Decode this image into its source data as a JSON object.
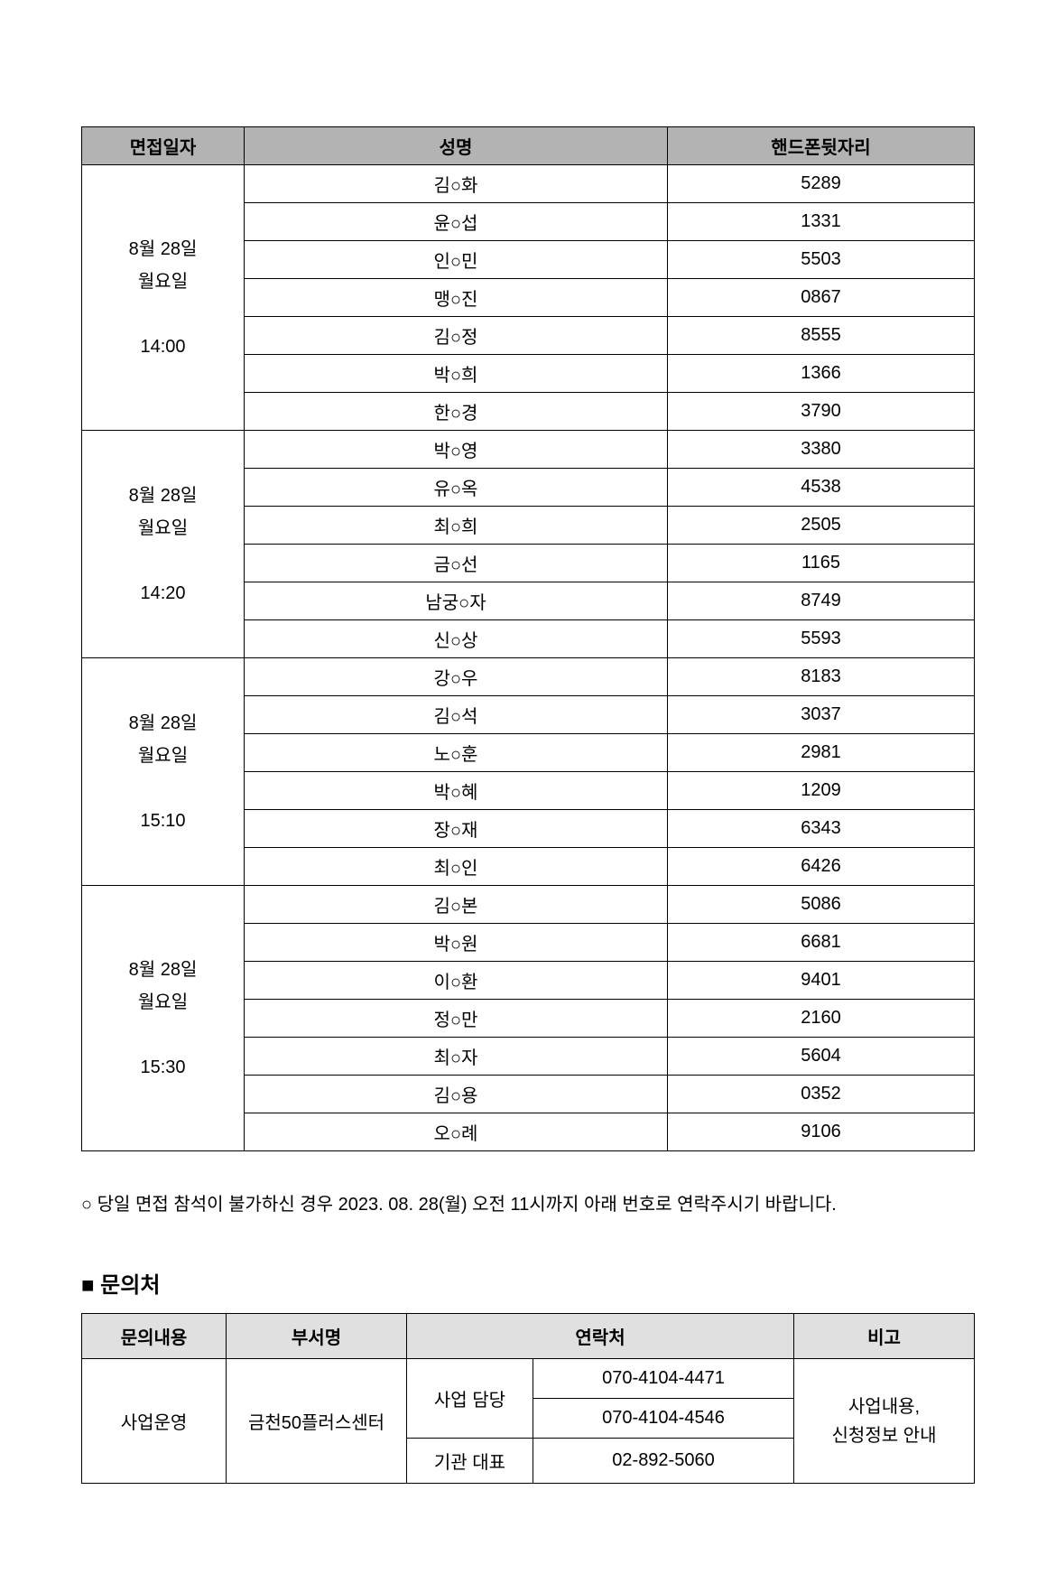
{
  "schedule": {
    "headers": [
      "면접일자",
      "성명",
      "핸드폰뒷자리"
    ],
    "groups": [
      {
        "date": "8월 28일\n월요일\n\n14:00",
        "rows": [
          {
            "name": "김○화",
            "phone": "5289"
          },
          {
            "name": "윤○섭",
            "phone": "1331"
          },
          {
            "name": "인○민",
            "phone": "5503"
          },
          {
            "name": "맹○진",
            "phone": "0867"
          },
          {
            "name": "김○정",
            "phone": "8555"
          },
          {
            "name": "박○희",
            "phone": "1366"
          },
          {
            "name": "한○경",
            "phone": "3790"
          }
        ]
      },
      {
        "date": "8월 28일\n월요일\n\n14:20",
        "rows": [
          {
            "name": "박○영",
            "phone": "3380"
          },
          {
            "name": "유○옥",
            "phone": "4538"
          },
          {
            "name": "최○희",
            "phone": "2505"
          },
          {
            "name": "금○선",
            "phone": "1165"
          },
          {
            "name": "남궁○자",
            "phone": "8749"
          },
          {
            "name": "신○상",
            "phone": "5593"
          }
        ]
      },
      {
        "date": "8월 28일\n월요일\n\n15:10",
        "rows": [
          {
            "name": "강○우",
            "phone": "8183"
          },
          {
            "name": "김○석",
            "phone": "3037"
          },
          {
            "name": "노○훈",
            "phone": "2981"
          },
          {
            "name": "박○혜",
            "phone": "1209"
          },
          {
            "name": "장○재",
            "phone": "6343"
          },
          {
            "name": "최○인",
            "phone": "6426"
          }
        ]
      },
      {
        "date": "8월 28일\n월요일\n\n15:30",
        "rows": [
          {
            "name": "김○본",
            "phone": "5086"
          },
          {
            "name": "박○원",
            "phone": "6681"
          },
          {
            "name": "이○환",
            "phone": "9401"
          },
          {
            "name": "정○만",
            "phone": "2160"
          },
          {
            "name": "최○자",
            "phone": "5604"
          },
          {
            "name": "김○용",
            "phone": "0352"
          },
          {
            "name": "오○례",
            "phone": "9106"
          }
        ]
      }
    ]
  },
  "notice": {
    "bullet": "○",
    "text": "당일 면접 참석이 불가하신 경우 2023. 08. 28(월) 오전 11시까지 아래 번호로 연락주시기 바랍니다."
  },
  "contact_section": {
    "heading": "■  문의처",
    "headers": [
      "문의내용",
      "부서명",
      "연락처",
      "비고"
    ],
    "inquiry": "사업운영",
    "department": "금천50플러스센터",
    "contacts": [
      {
        "role": "사업 담당",
        "phone": "070-4104-4471"
      },
      {
        "role_continued": true,
        "phone": "070-4104-4546"
      },
      {
        "role": "기관 대표",
        "phone": "02-892-5060"
      }
    ],
    "remark": "사업내용,\n신청정보 안내"
  },
  "colors": {
    "header_bg": "#b3b3b3",
    "contact_header_bg": "#e0e0e0",
    "border": "#000000",
    "page_bg": "#ffffff",
    "text": "#000000"
  }
}
